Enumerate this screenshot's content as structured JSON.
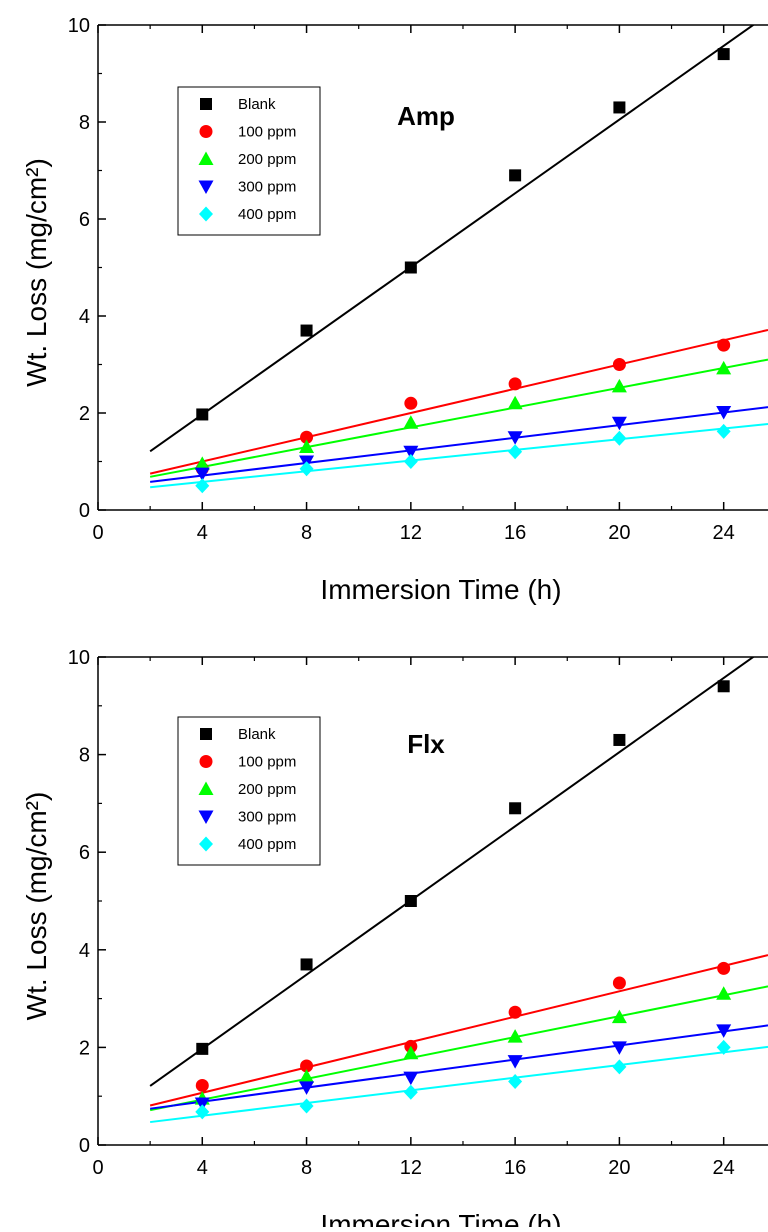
{
  "chart_data": [
    {
      "type": "scatter",
      "title": "Amp",
      "xlabel": "Immersion Time (h)",
      "ylabel": "Wt. Loss (mg/cm²)",
      "xlim": [
        0,
        25.7
      ],
      "ylim": [
        0,
        10
      ],
      "xticks": [
        0,
        4,
        8,
        12,
        16,
        20,
        24
      ],
      "yticks": [
        0,
        2,
        4,
        6,
        8,
        10
      ],
      "grid": false,
      "legend_position": "top-left",
      "x": [
        4,
        8,
        12,
        16,
        20,
        24
      ],
      "series": [
        {
          "name": "Blank",
          "marker": "square",
          "color": "#000000",
          "values": [
            1.97,
            3.7,
            5.0,
            6.9,
            8.3,
            9.4
          ],
          "fit": [
            0.45,
            0.38
          ]
        },
        {
          "name": "100 ppm",
          "marker": "circle",
          "color": "#ff0000",
          "values": [
            0.85,
            1.5,
            2.2,
            2.6,
            3.0,
            3.4
          ],
          "fit": [
            0.5,
            0.125
          ]
        },
        {
          "name": "200 ppm",
          "marker": "triangle-up",
          "color": "#00ff00",
          "values": [
            0.95,
            1.3,
            1.8,
            2.2,
            2.55,
            2.92
          ],
          "fit": [
            0.48,
            0.102
          ]
        },
        {
          "name": "300 ppm",
          "marker": "triangle-down",
          "color": "#0000ff",
          "values": [
            0.75,
            1.0,
            1.2,
            1.5,
            1.8,
            2.02
          ],
          "fit": [
            0.45,
            0.065
          ]
        },
        {
          "name": "400 ppm",
          "marker": "diamond",
          "color": "#00ffff",
          "values": [
            0.5,
            0.85,
            1.0,
            1.2,
            1.48,
            1.62
          ],
          "fit": [
            0.36,
            0.055
          ]
        }
      ]
    },
    {
      "type": "scatter",
      "title": "Flx",
      "xlabel": "Immersion Time (h)",
      "ylabel": "Wt. Loss (mg/cm²)",
      "xlim": [
        0,
        25.7
      ],
      "ylim": [
        0,
        10
      ],
      "xticks": [
        0,
        4,
        8,
        12,
        16,
        20,
        24
      ],
      "yticks": [
        0,
        2,
        4,
        6,
        8,
        10
      ],
      "grid": false,
      "legend_position": "top-left",
      "x": [
        4,
        8,
        12,
        16,
        20,
        24
      ],
      "series": [
        {
          "name": "Blank",
          "marker": "square",
          "color": "#000000",
          "values": [
            1.97,
            3.7,
            5.0,
            6.9,
            8.3,
            9.4
          ],
          "fit": [
            0.45,
            0.38
          ]
        },
        {
          "name": "100 ppm",
          "marker": "circle",
          "color": "#ff0000",
          "values": [
            1.22,
            1.62,
            2.02,
            2.72,
            3.32,
            3.62
          ],
          "fit": [
            0.55,
            0.13
          ]
        },
        {
          "name": "200 ppm",
          "marker": "triangle-up",
          "color": "#00ff00",
          "values": [
            0.95,
            1.4,
            1.88,
            2.22,
            2.62,
            3.1
          ],
          "fit": [
            0.5,
            0.107
          ]
        },
        {
          "name": "300 ppm",
          "marker": "triangle-down",
          "color": "#0000ff",
          "values": [
            0.85,
            1.18,
            1.38,
            1.72,
            2.0,
            2.35
          ],
          "fit": [
            0.6,
            0.072
          ]
        },
        {
          "name": "400 ppm",
          "marker": "diamond",
          "color": "#00ffff",
          "values": [
            0.68,
            0.8,
            1.08,
            1.3,
            1.6,
            2.0
          ],
          "fit": [
            0.34,
            0.065
          ]
        }
      ]
    }
  ]
}
